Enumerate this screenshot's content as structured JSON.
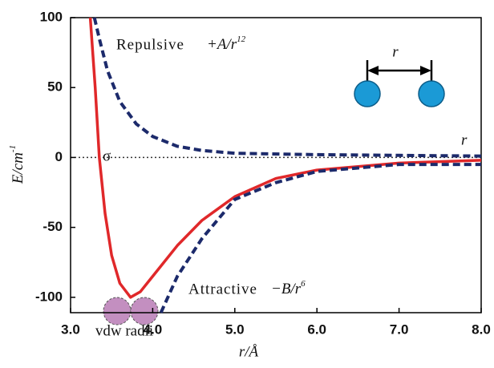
{
  "chart_data": {
    "type": "line",
    "y_label": "E/cm",
    "y_label_sup": "-1",
    "x_label": "r/Å",
    "annotations": {
      "repulsive": "Repulsive",
      "repulsive_formula": "+A/r",
      "repulsive_exponent": "12",
      "attractive": "Attractive",
      "attractive_formula": "−B/r",
      "attractive_exponent": "6",
      "sigma": "σ",
      "r_far": "r",
      "r_diagram": "r",
      "vdw": "vdw radii"
    },
    "xlim": [
      3,
      8
    ],
    "ylim": [
      -111,
      100
    ],
    "xticks": [
      {
        "value": 3,
        "label": "3.0"
      },
      {
        "value": 4,
        "label": "4.0"
      },
      {
        "value": 5,
        "label": "5.0"
      },
      {
        "value": 6,
        "label": "6.0"
      },
      {
        "value": 7,
        "label": "7.0"
      },
      {
        "value": 8,
        "label": "8.0"
      }
    ],
    "yticks": [
      -100,
      -50,
      0,
      50,
      100
    ],
    "reference_line": 0,
    "series": [
      {
        "color": "#e0282a",
        "dashed": false,
        "x": [
          3.24,
          3.3,
          3.35,
          3.42,
          3.5,
          3.6,
          3.73,
          3.85,
          4.0,
          4.3,
          4.6,
          5.0,
          5.5,
          6.0,
          7.0,
          8.0
        ],
        "values": [
          100,
          50,
          0,
          -40,
          -70,
          -90,
          -100,
          -96,
          -85,
          -63,
          -45,
          -28,
          -15,
          -9,
          -4,
          -2
        ]
      },
      {
        "color": "#1c2a6b",
        "dashed": true,
        "x": [
          3.29,
          3.35,
          3.45,
          3.6,
          3.8,
          4.0,
          4.3,
          4.6,
          5.0,
          6.0,
          7.0,
          8.0
        ],
        "values": [
          100,
          85,
          62,
          40,
          24,
          15,
          8,
          5,
          3,
          2,
          1.5,
          1
        ]
      },
      {
        "color": "#1c2a6b",
        "dashed": true,
        "x": [
          4.1,
          4.3,
          4.6,
          5.0,
          5.5,
          6.0,
          7.0,
          8.0
        ],
        "values": [
          -111,
          -85,
          -58,
          -30,
          -18,
          -10,
          -5,
          -5
        ]
      }
    ]
  }
}
